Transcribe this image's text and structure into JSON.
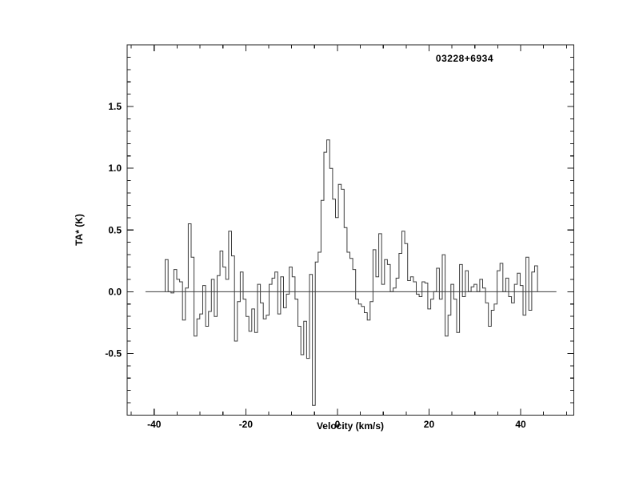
{
  "chart_data": {
    "type": "line",
    "subtype": "step-histogram-spectrum",
    "title": "03228+6934",
    "xlabel": "Velocity (km/s)",
    "ylabel": "TA* (K)",
    "xlim": [
      -45.9,
      51.6
    ],
    "ylim": [
      -1.0,
      2.0
    ],
    "x_major_ticks": [
      -40,
      -20,
      0,
      20,
      40
    ],
    "x_tick_labels": [
      "-40",
      "-20",
      "0",
      "20",
      "40"
    ],
    "x_minor_tick_step": 5,
    "y_major_ticks": [
      -0.5,
      0.0,
      0.5,
      1.0,
      1.5
    ],
    "y_tick_labels": [
      "-0.5",
      "0.0",
      "0.5",
      "1.0",
      "1.5"
    ],
    "y_minor_tick_step": 0.1,
    "grid": false,
    "legend": false,
    "zero_line": {
      "value": 0.0,
      "x_from": -41.9,
      "x_to": 47.8
    },
    "peak": {
      "velocity": -1.3,
      "ta_max": 1.23
    },
    "series": [
      {
        "name": "spectrum",
        "x_start": -37.6,
        "x_step": 0.63,
        "values": [
          0.26,
          0.0,
          -0.01,
          0.18,
          0.1,
          0.08,
          -0.23,
          0.03,
          0.55,
          0.28,
          -0.36,
          -0.22,
          -0.18,
          0.05,
          -0.28,
          -0.16,
          0.1,
          -0.2,
          0.13,
          0.33,
          0.2,
          0.1,
          0.49,
          0.29,
          -0.4,
          -0.08,
          0.16,
          -0.06,
          -0.2,
          -0.32,
          -0.14,
          -0.33,
          0.06,
          -0.09,
          -0.22,
          -0.19,
          0.06,
          0.11,
          0.16,
          -0.18,
          0.12,
          -0.13,
          -0.02,
          0.2,
          0.12,
          -0.06,
          -0.28,
          -0.51,
          -0.24,
          -0.54,
          0.14,
          -0.92,
          0.24,
          0.32,
          0.74,
          1.13,
          1.23,
          1.0,
          0.75,
          0.6,
          0.87,
          0.83,
          0.52,
          0.32,
          0.27,
          0.18,
          -0.06,
          -0.1,
          -0.12,
          -0.17,
          -0.23,
          -0.08,
          0.34,
          0.12,
          0.47,
          0.06,
          0.26,
          0.22,
          0.0,
          0.03,
          0.11,
          0.31,
          0.49,
          0.39,
          0.09,
          0.12,
          0.08,
          -0.02,
          -0.04,
          0.08,
          0.07,
          -0.14,
          -0.06,
          0.0,
          0.19,
          -0.06,
          0.3,
          -0.36,
          -0.19,
          0.06,
          -0.06,
          -0.33,
          0.22,
          -0.04,
          0.17,
          0.0,
          0.04,
          0.06,
          0.0,
          0.1,
          0.03,
          -0.09,
          -0.28,
          -0.15,
          -0.1,
          0.17,
          0.23,
          0.0,
          0.11,
          -0.04,
          -0.09,
          0.06,
          0.15,
          0.05,
          -0.19,
          0.28,
          -0.15,
          0.16,
          0.21
        ]
      }
    ],
    "colors": {
      "line": "#3c3c3c",
      "axis": "#1f1f1f",
      "text": "#000000",
      "background": "#ffffff"
    }
  }
}
